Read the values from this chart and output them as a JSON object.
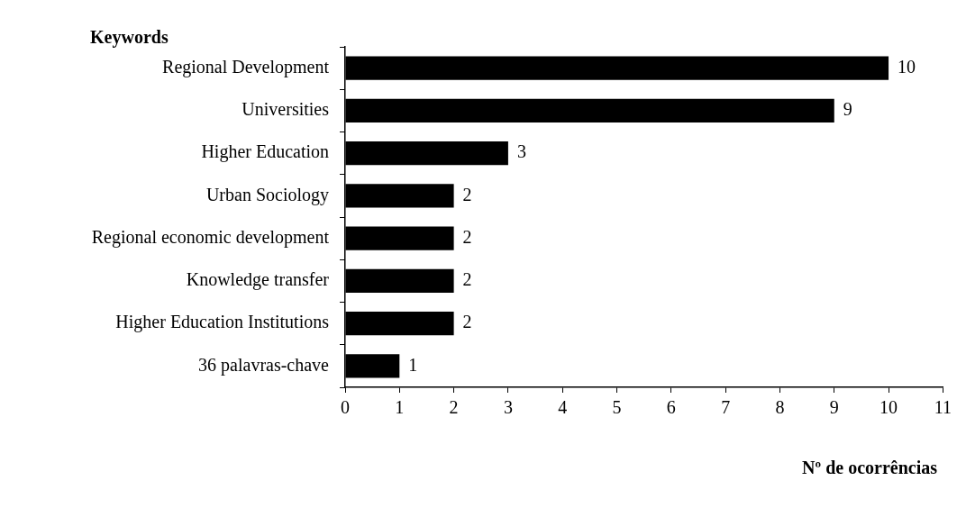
{
  "chart_data": {
    "type": "bar",
    "orientation": "horizontal",
    "ylabel": "Keywords",
    "xlabel": "Nº de ocorrências",
    "categories": [
      "Regional Development",
      "Universities",
      "Higher Education",
      "Urban Sociology",
      "Regional economic development",
      "Knowledge transfer",
      "Higher Education Institutions",
      "36 palavras-chave"
    ],
    "values": [
      10,
      9,
      3,
      2,
      2,
      2,
      2,
      1
    ],
    "color": "#000000",
    "xlim": [
      0,
      11
    ],
    "xticks": [
      0,
      1,
      2,
      3,
      4,
      5,
      6,
      7,
      8,
      9,
      10,
      11
    ],
    "grid": false,
    "legend": false,
    "data_labels": true
  }
}
